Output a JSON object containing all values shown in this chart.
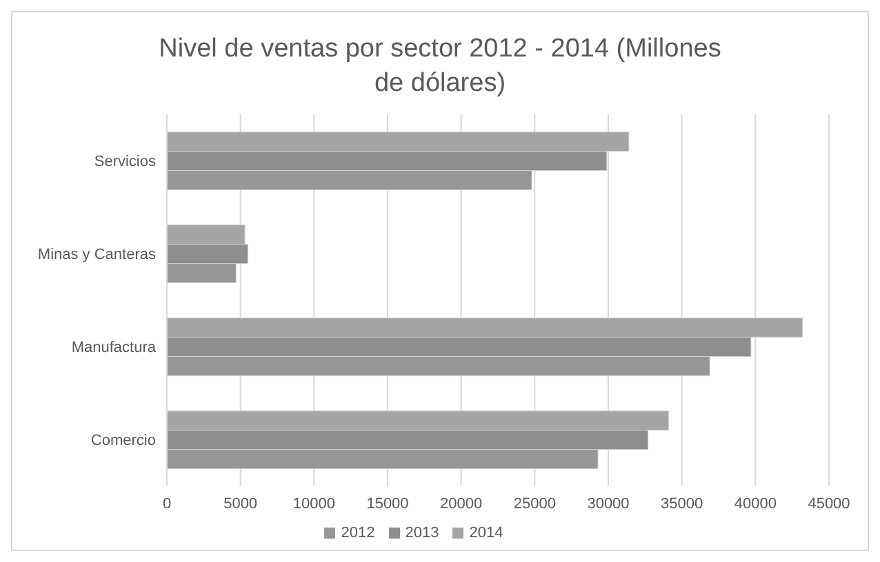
{
  "chart_data": {
    "type": "bar",
    "orientation": "horizontal",
    "title": "Nivel de ventas por sector 2012 - 2014 (Millones de dólares)",
    "categories": [
      "Servicios",
      "Minas y Canteras",
      "Manufactura",
      "Comercio"
    ],
    "series": [
      {
        "name": "2014",
        "color": "#a5a5a5",
        "values": [
          31400,
          5300,
          43200,
          34100
        ]
      },
      {
        "name": "2013",
        "color": "#8e8e8e",
        "values": [
          29900,
          5500,
          39700,
          32700
        ]
      },
      {
        "name": "2012",
        "color": "#969696",
        "values": [
          24800,
          4700,
          36900,
          29300
        ]
      }
    ],
    "xlim": [
      0,
      45000
    ],
    "xticks": [
      0,
      5000,
      10000,
      15000,
      20000,
      25000,
      30000,
      35000,
      40000,
      45000
    ],
    "grid": "x",
    "legend": "bottom"
  }
}
